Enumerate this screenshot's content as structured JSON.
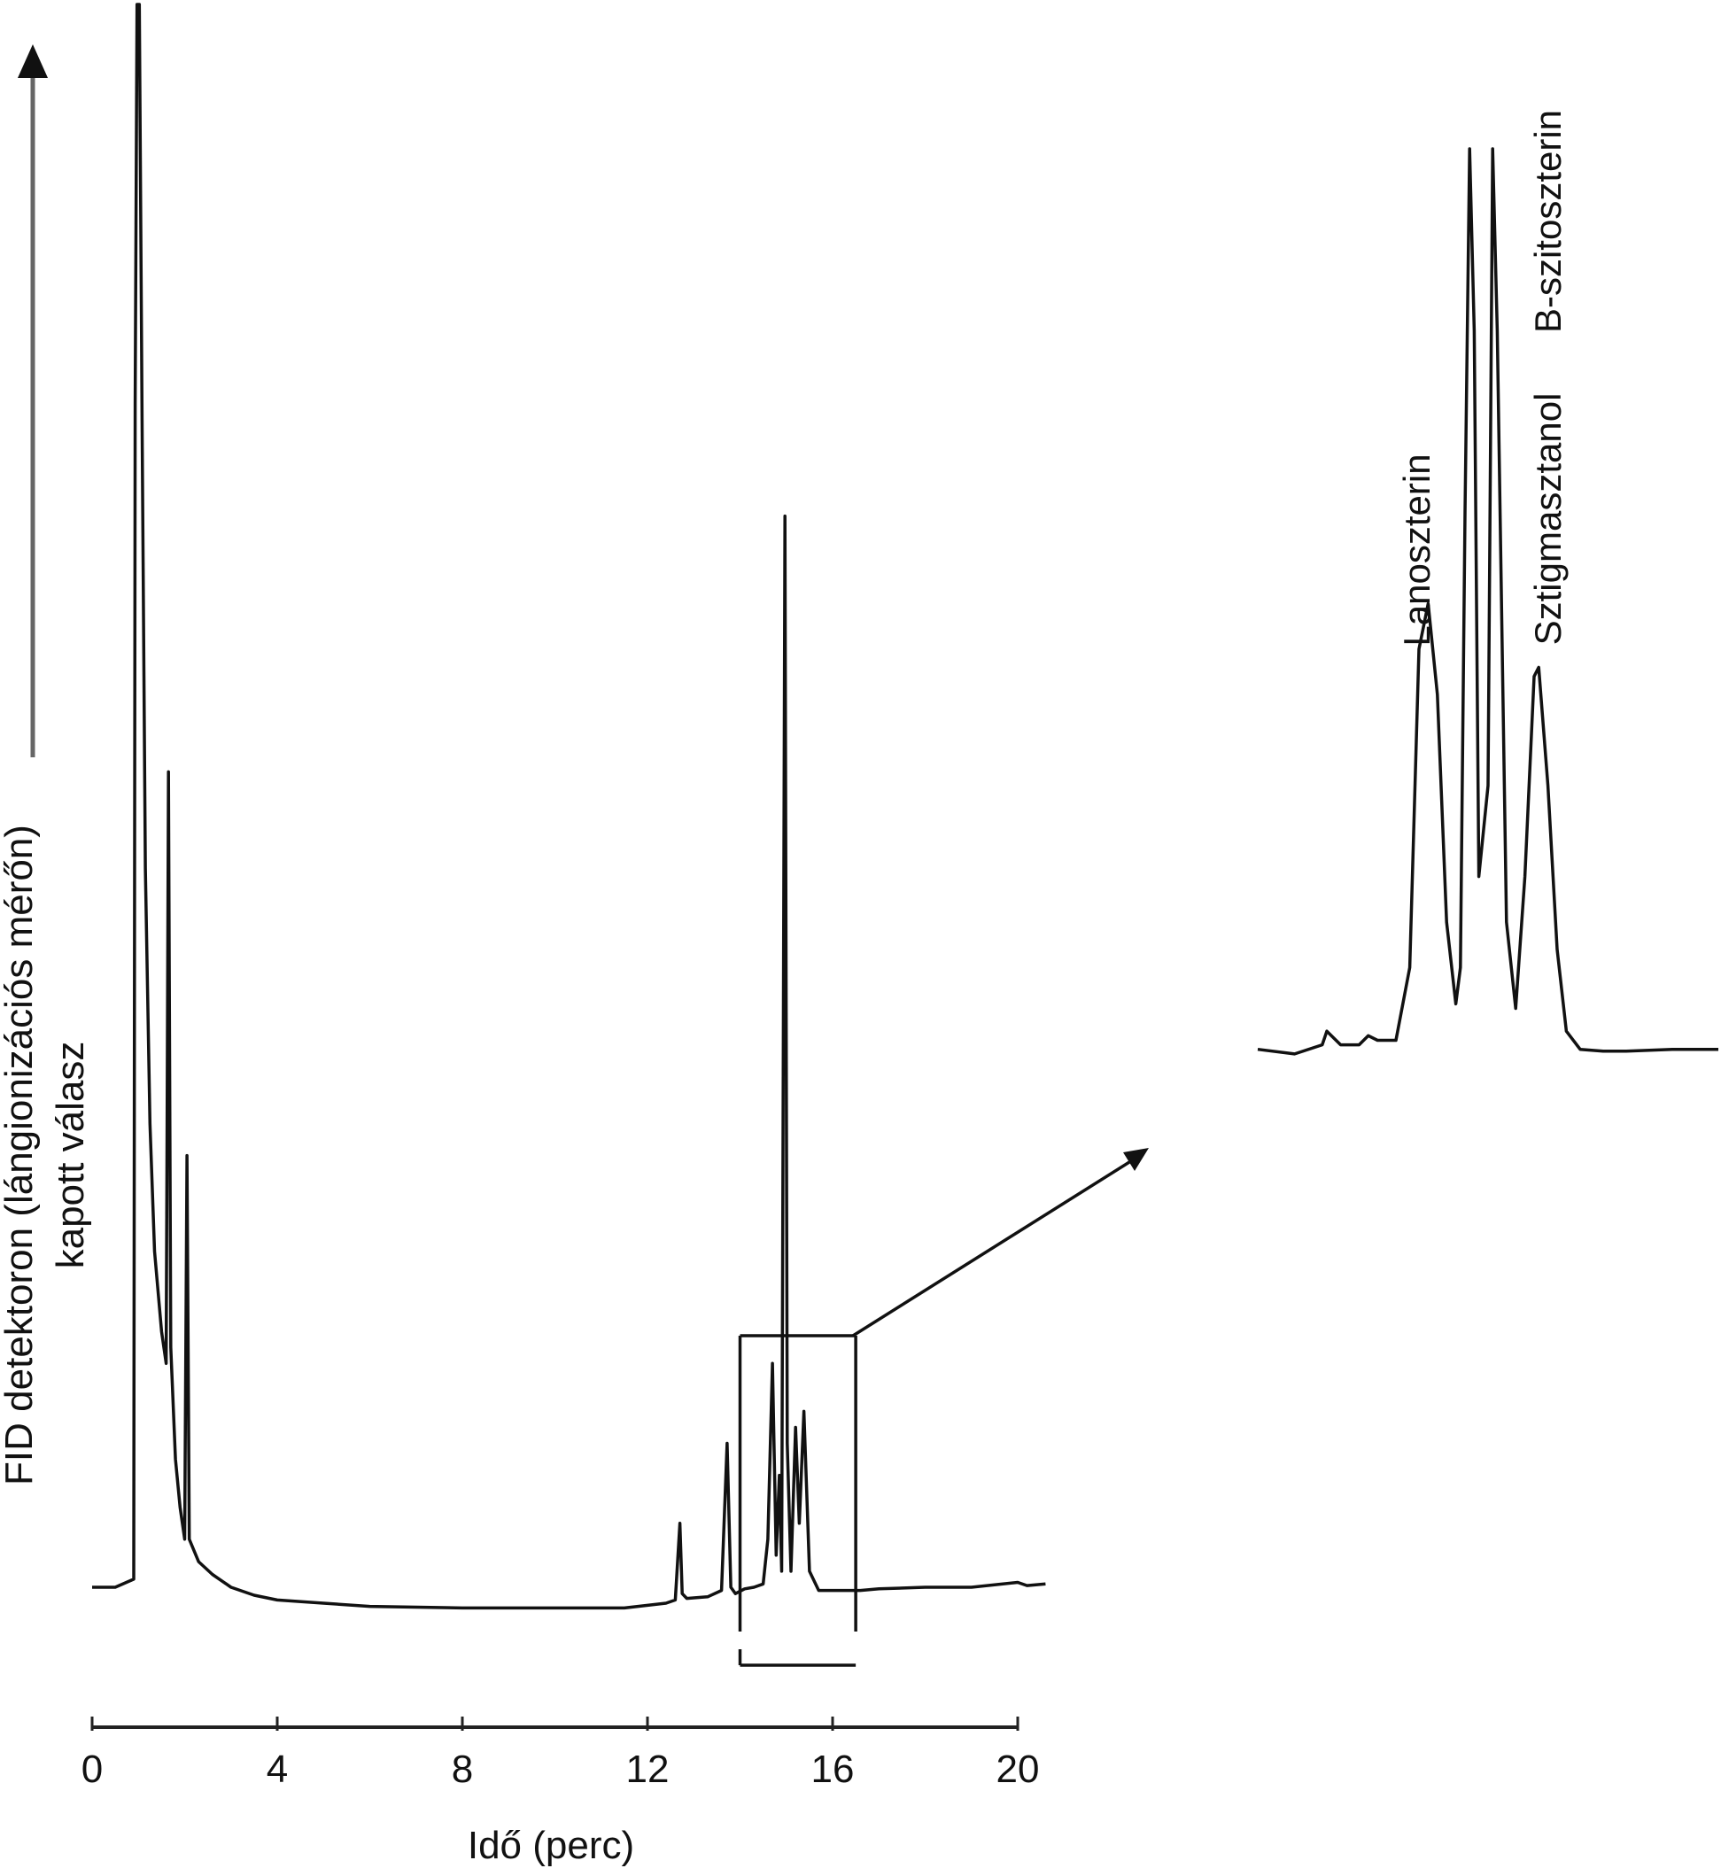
{
  "chart_data": {
    "type": "line",
    "xlabel": "Idő (perc)",
    "ylabel_line1": "FID detektoron (lángionizációs mérőn)",
    "ylabel_line2": "kapott válasz",
    "xlim": [
      0,
      20
    ],
    "x_ticks": [
      "0",
      "4",
      "8",
      "12",
      "16",
      "20"
    ],
    "ylim": [
      0,
      100
    ],
    "grid": false,
    "legend": "none",
    "colors": {
      "line": "#111111",
      "axis": "#222222",
      "arrow": "#111111"
    },
    "zoom_window": {
      "x_start": 14.0,
      "x_end": 16.5
    },
    "series": [
      {
        "points": [
          [
            0.0,
            1.0
          ],
          [
            0.5,
            1.0
          ],
          [
            0.9,
            1.5
          ],
          [
            0.93,
            75
          ],
          [
            0.97,
            100
          ],
          [
            1.02,
            100
          ],
          [
            1.08,
            74
          ],
          [
            1.15,
            46
          ],
          [
            1.25,
            30
          ],
          [
            1.35,
            22
          ],
          [
            1.5,
            17
          ],
          [
            1.6,
            15
          ],
          [
            1.65,
            52
          ],
          [
            1.7,
            16
          ],
          [
            1.8,
            9
          ],
          [
            1.9,
            6
          ],
          [
            2.0,
            4
          ],
          [
            2.05,
            28
          ],
          [
            2.1,
            4
          ],
          [
            2.3,
            2.6
          ],
          [
            2.6,
            1.8
          ],
          [
            3.0,
            1.0
          ],
          [
            3.5,
            0.5
          ],
          [
            4.0,
            0.2
          ],
          [
            5.0,
            0.0
          ],
          [
            6.0,
            -0.2
          ],
          [
            8.0,
            -0.3
          ],
          [
            10.0,
            -0.3
          ],
          [
            11.5,
            -0.3
          ],
          [
            12.4,
            0.0
          ],
          [
            12.6,
            0.2
          ],
          [
            12.7,
            5.0
          ],
          [
            12.75,
            0.6
          ],
          [
            12.85,
            0.3
          ],
          [
            13.3,
            0.4
          ],
          [
            13.6,
            0.8
          ],
          [
            13.72,
            10.0
          ],
          [
            13.8,
            1.0
          ],
          [
            13.9,
            0.6
          ],
          [
            14.1,
            0.9
          ],
          [
            14.3,
            1.0
          ],
          [
            14.5,
            1.2
          ],
          [
            14.6,
            4.0
          ],
          [
            14.7,
            15.0
          ],
          [
            14.78,
            3.0
          ],
          [
            14.85,
            8.0
          ],
          [
            14.9,
            2.0
          ],
          [
            14.97,
            68.0
          ],
          [
            15.02,
            10.0
          ],
          [
            15.1,
            2.0
          ],
          [
            15.2,
            11.0
          ],
          [
            15.28,
            5.0
          ],
          [
            15.38,
            12.0
          ],
          [
            15.5,
            2.0
          ],
          [
            15.7,
            0.8
          ],
          [
            16.2,
            0.8
          ],
          [
            16.6,
            0.8
          ],
          [
            17.0,
            0.9
          ],
          [
            18.0,
            1.0
          ],
          [
            19.0,
            1.0
          ],
          [
            20.0,
            1.3
          ],
          [
            20.2,
            1.1
          ],
          [
            20.6,
            1.2
          ]
        ]
      }
    ],
    "inset": {
      "type": "line",
      "labels": [
        "Lanoszterin",
        "Sztigmasztanol",
        "B-szitoszterin"
      ],
      "points": [
        [
          0.0,
          1.0
        ],
        [
          0.08,
          0.5
        ],
        [
          0.14,
          1.5
        ],
        [
          0.15,
          3.0
        ],
        [
          0.18,
          1.5
        ],
        [
          0.22,
          1.5
        ],
        [
          0.24,
          2.5
        ],
        [
          0.26,
          2.0
        ],
        [
          0.3,
          2.0
        ],
        [
          0.33,
          10.0
        ],
        [
          0.35,
          45.0
        ],
        [
          0.37,
          50.0
        ],
        [
          0.39,
          40.0
        ],
        [
          0.41,
          15.0
        ],
        [
          0.43,
          6.0
        ],
        [
          0.44,
          10.0
        ],
        [
          0.45,
          60.0
        ],
        [
          0.46,
          100.0
        ],
        [
          0.47,
          80.0
        ],
        [
          0.48,
          20.0
        ],
        [
          0.5,
          30.0
        ],
        [
          0.51,
          100.0
        ],
        [
          0.52,
          80.0
        ],
        [
          0.54,
          15.0
        ],
        [
          0.56,
          5.5
        ],
        [
          0.58,
          20.0
        ],
        [
          0.6,
          42.0
        ],
        [
          0.61,
          43.0
        ],
        [
          0.63,
          30.0
        ],
        [
          0.65,
          12.0
        ],
        [
          0.67,
          3.0
        ],
        [
          0.7,
          1.0
        ],
        [
          0.75,
          0.8
        ],
        [
          0.8,
          0.8
        ],
        [
          0.9,
          1.0
        ],
        [
          1.0,
          1.0
        ]
      ]
    }
  }
}
